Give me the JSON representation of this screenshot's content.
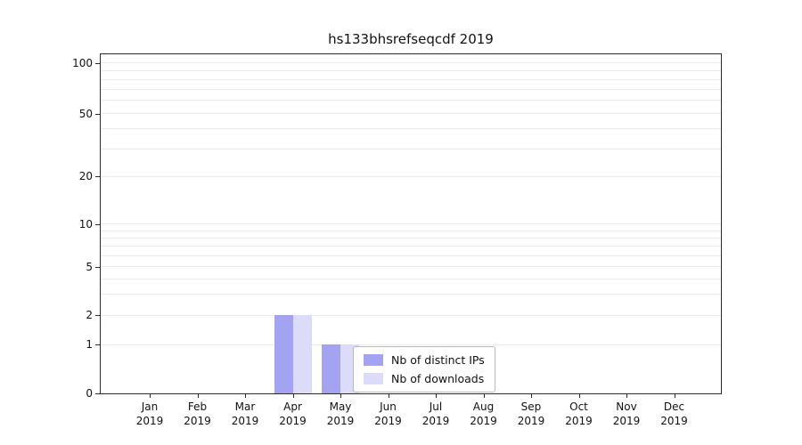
{
  "title": "hs133bhsrefseqcdf 2019",
  "chart_data": {
    "type": "bar",
    "title": "hs133bhsrefseqcdf 2019",
    "categories": [
      "Jan 2019",
      "Feb 2019",
      "Mar 2019",
      "Apr 2019",
      "May 2019",
      "Jun 2019",
      "Jul 2019",
      "Aug 2019",
      "Sep 2019",
      "Oct 2019",
      "Nov 2019",
      "Dec 2019"
    ],
    "series": [
      {
        "name": "Nb of distinct IPs",
        "color": "#a3a3f2",
        "values": [
          0,
          0,
          0,
          2,
          1,
          0,
          0,
          0,
          0,
          0,
          0,
          0
        ]
      },
      {
        "name": "Nb of downloads",
        "color": "#dcdcfa",
        "values": [
          0,
          0,
          0,
          2,
          1,
          0,
          0,
          0,
          0,
          0,
          0,
          0
        ]
      }
    ],
    "xlabel": "",
    "ylabel": "",
    "yscale": "symlog",
    "yticks": [
      0,
      1,
      2,
      5,
      10,
      20,
      50,
      100
    ],
    "ylim": [
      0,
      112
    ],
    "grid": "horizontal-minor",
    "legend": {
      "items": [
        "Nb of distinct IPs",
        "Nb of downloads"
      ],
      "position": "lower-center"
    }
  }
}
